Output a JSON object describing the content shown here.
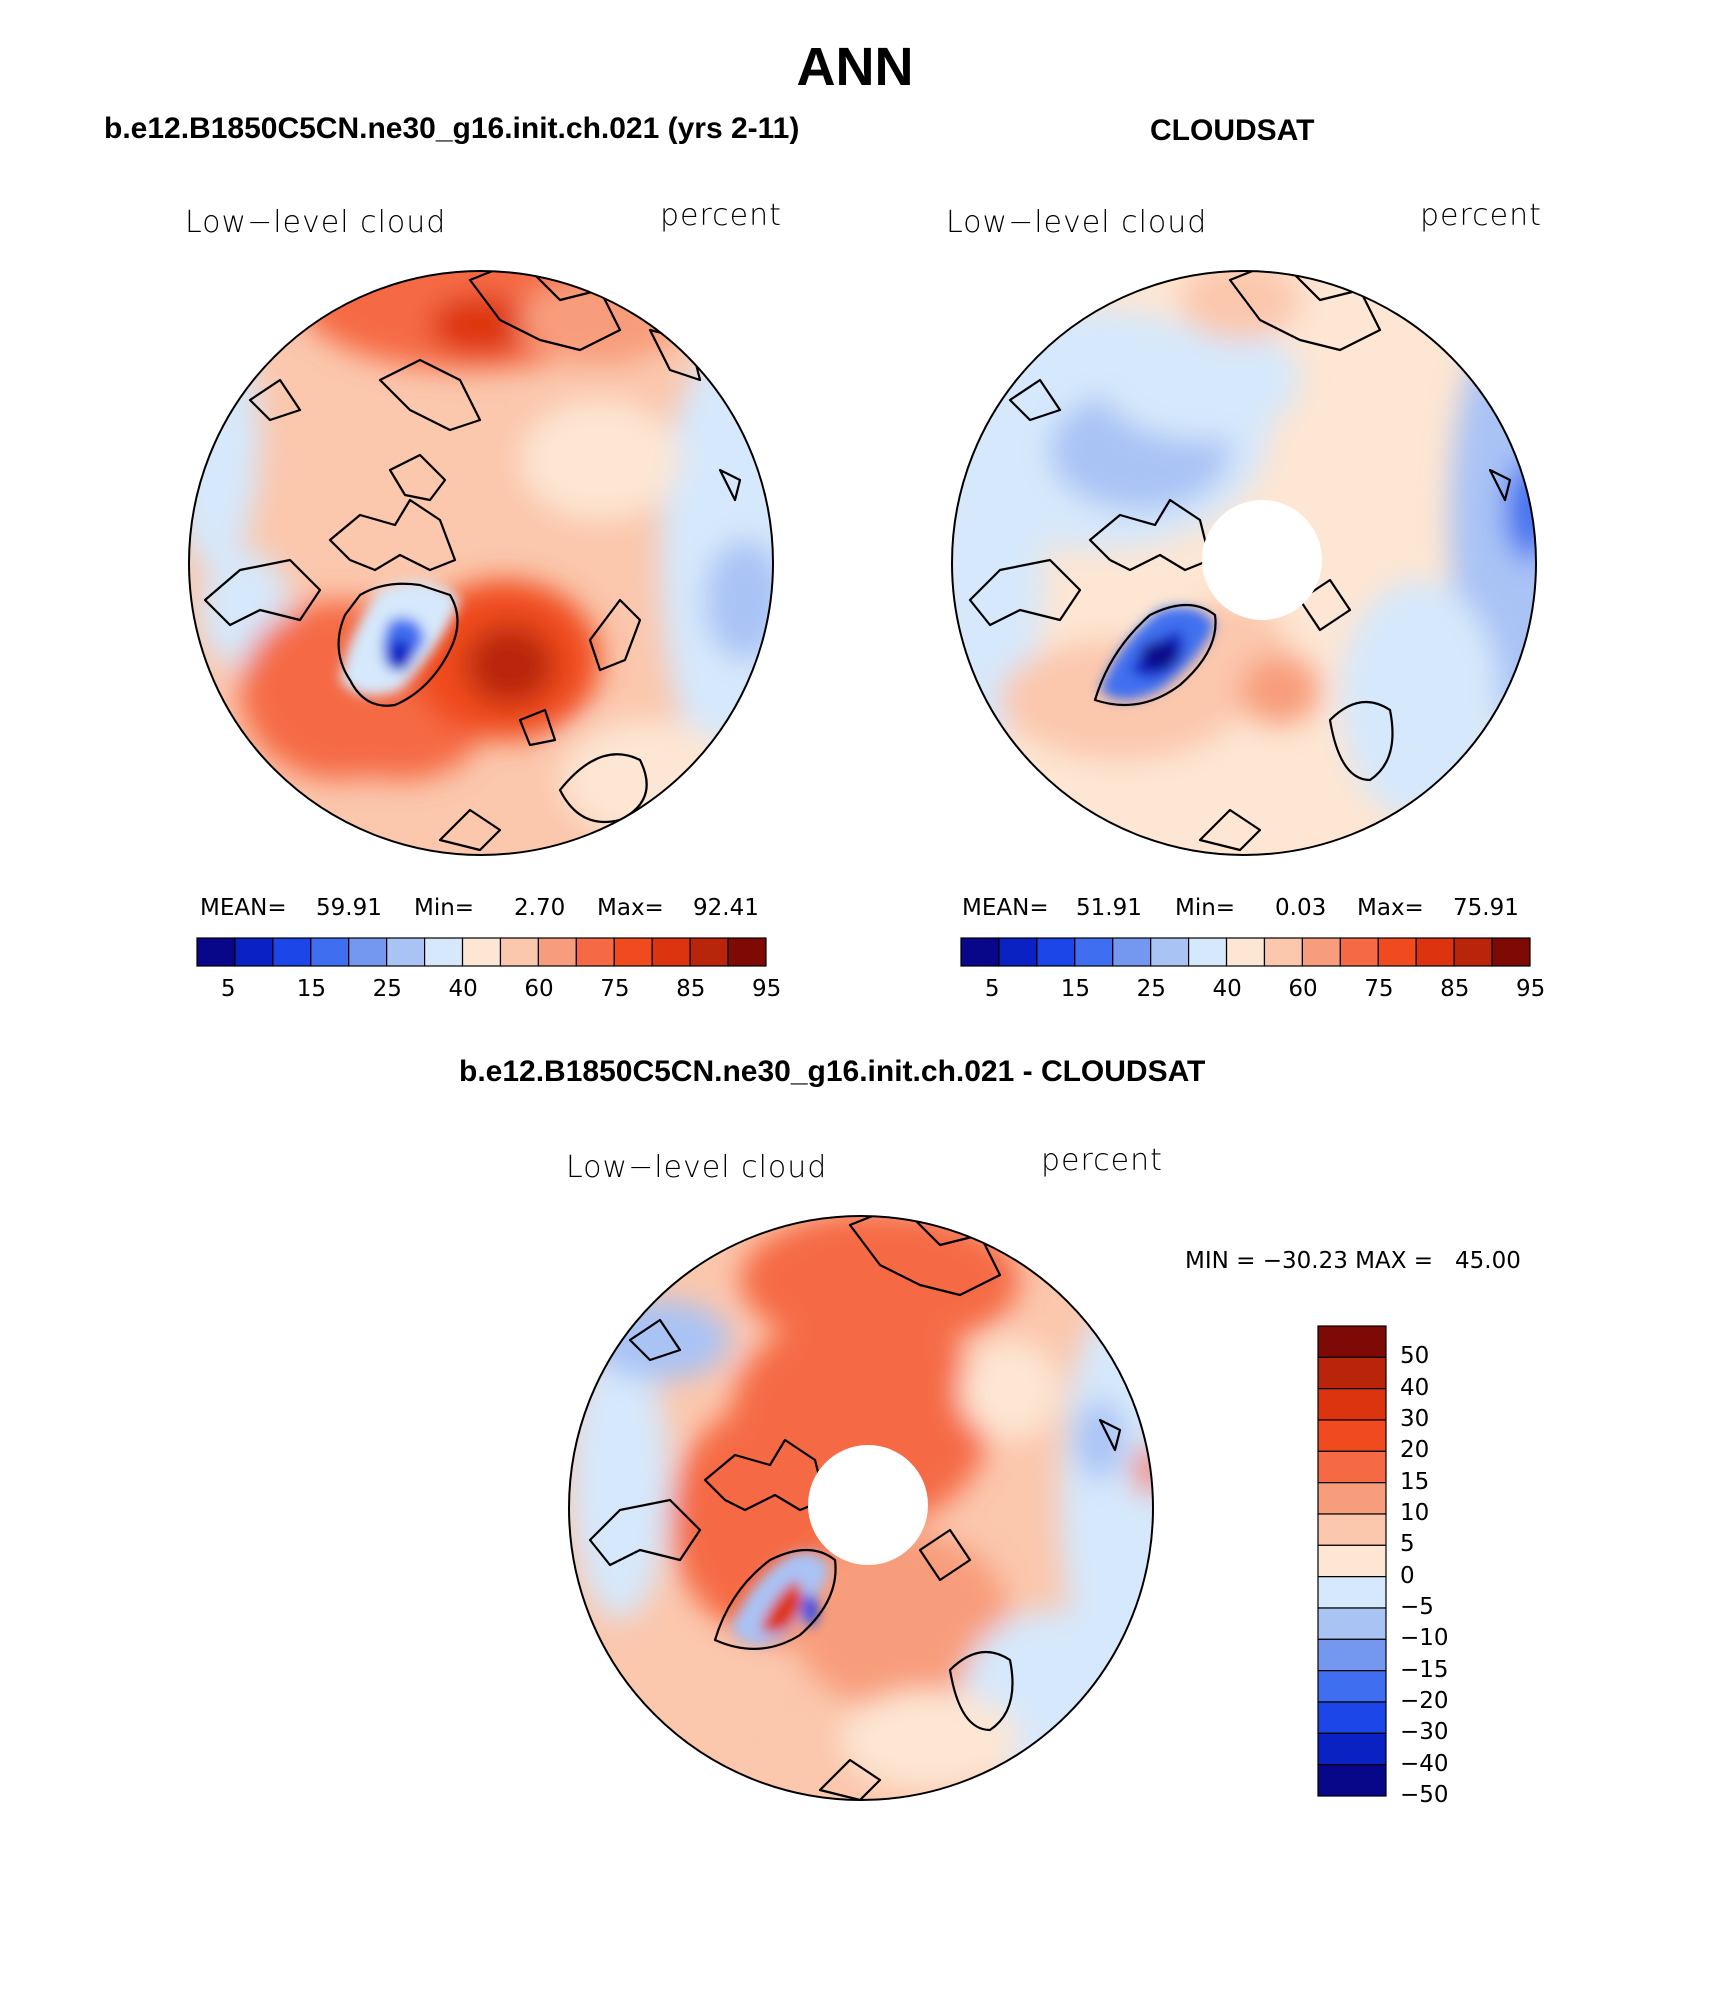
{
  "page_title": "ANN",
  "panels": [
    {
      "header": "b.e12.B1850C5CN.ne30_g16.init.ch.021 (yrs 2-11)",
      "variable": "Low−level cloud",
      "units": "percent",
      "stats": {
        "mean_label": "MEAN=",
        "mean": "59.91",
        "min_label": "Min=",
        "min": "2.70",
        "max_label": "Max=",
        "max": "92.41"
      },
      "colorbar_ticks": [
        "5",
        "15",
        "25",
        "40",
        "60",
        "75",
        "85",
        "95"
      ],
      "has_pole_hole": false
    },
    {
      "header": "CLOUDSAT",
      "variable": "Low−level cloud",
      "units": "percent",
      "stats": {
        "mean_label": "MEAN=",
        "mean": "51.91",
        "min_label": "Min=",
        "min": "0.03",
        "max_label": "Max=",
        "max": "75.91"
      },
      "colorbar_ticks": [
        "5",
        "15",
        "25",
        "40",
        "60",
        "75",
        "85",
        "95"
      ],
      "has_pole_hole": true
    },
    {
      "header": "b.e12.B1850C5CN.ne30_g16.init.ch.021 - CLOUDSAT",
      "variable": "Low−level cloud",
      "units": "percent",
      "minmax_text": "MIN = −30.23 MAX =   45.00",
      "colorbar_ticks": [
        "50",
        "40",
        "30",
        "20",
        "15",
        "10",
        "5",
        "0",
        "−5",
        "−10",
        "−15",
        "−20",
        "−30",
        "−40",
        "−50"
      ],
      "has_pole_hole": true
    }
  ],
  "colors": {
    "abs_scale": [
      "#08078a",
      "#0a22c4",
      "#1c46e8",
      "#3f6ff0",
      "#7497ef",
      "#a9c3f5",
      "#d6e8fb",
      "#fde6d3",
      "#fbc7ad",
      "#f89d7c",
      "#f56a45",
      "#f04b1f",
      "#dd3410",
      "#b8250a",
      "#7e0a05"
    ],
    "diff_scale": [
      "#7e0a05",
      "#b8250a",
      "#dd3410",
      "#f04b1f",
      "#f56a45",
      "#f89d7c",
      "#fbc7ad",
      "#fde6d3",
      "#d6e8fb",
      "#a9c3f5",
      "#7497ef",
      "#3f6ff0",
      "#1c46e8",
      "#0a22c4",
      "#08078a"
    ]
  }
}
